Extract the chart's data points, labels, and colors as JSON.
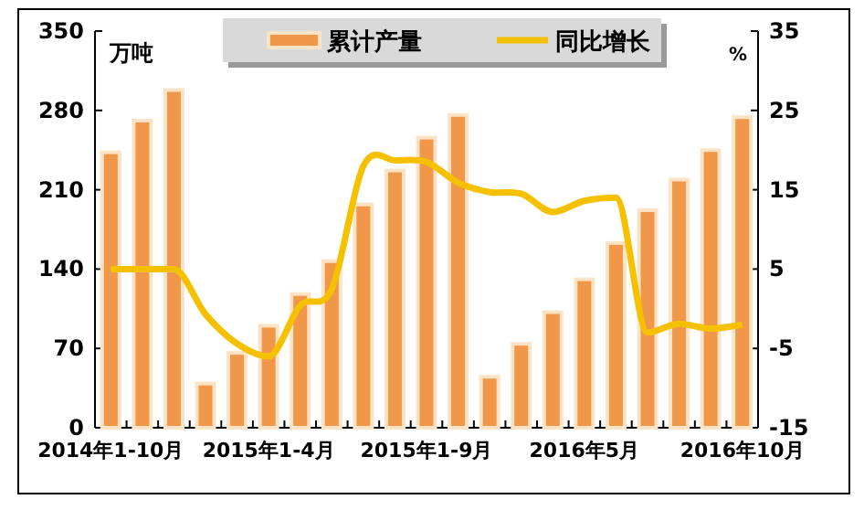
{
  "chart_data": {
    "type": "bar",
    "ylabel": "万吨",
    "y2label": "%",
    "categories": [
      "2014年1-10月",
      null,
      null,
      null,
      null,
      "2015年1-4月",
      null,
      null,
      null,
      null,
      "2015年1-9月",
      null,
      null,
      null,
      null,
      "2016年5月",
      null,
      null,
      null,
      null,
      "2016年10月"
    ],
    "series": [
      {
        "name": "累计产量",
        "color": "#f0974a",
        "values": [
          243,
          271,
          298,
          39,
          66,
          90,
          118,
          147,
          197,
          227,
          256,
          276,
          45,
          74,
          102,
          131,
          163,
          192,
          219,
          245,
          274
        ]
      },
      {
        "name": "同比增长",
        "type": "line",
        "axis": "y2",
        "color": "#f5c000",
        "values": [
          5,
          5,
          5,
          -0.7,
          -4.4,
          -6,
          0.4,
          2.5,
          18,
          18.7,
          18.5,
          15.9,
          14.7,
          14.5,
          12.2,
          13.6,
          14,
          -3,
          -1.9,
          -2.5,
          -2
        ]
      }
    ],
    "ylim": [
      0,
      350
    ],
    "yticks": [
      0,
      70,
      140,
      210,
      280,
      350
    ],
    "y2lim": [
      -15,
      35
    ],
    "y2ticks": [
      -15,
      -5,
      5,
      15,
      25,
      35
    ],
    "grid": false,
    "legend": "top",
    "marker": "none",
    "line_style": "solid"
  }
}
